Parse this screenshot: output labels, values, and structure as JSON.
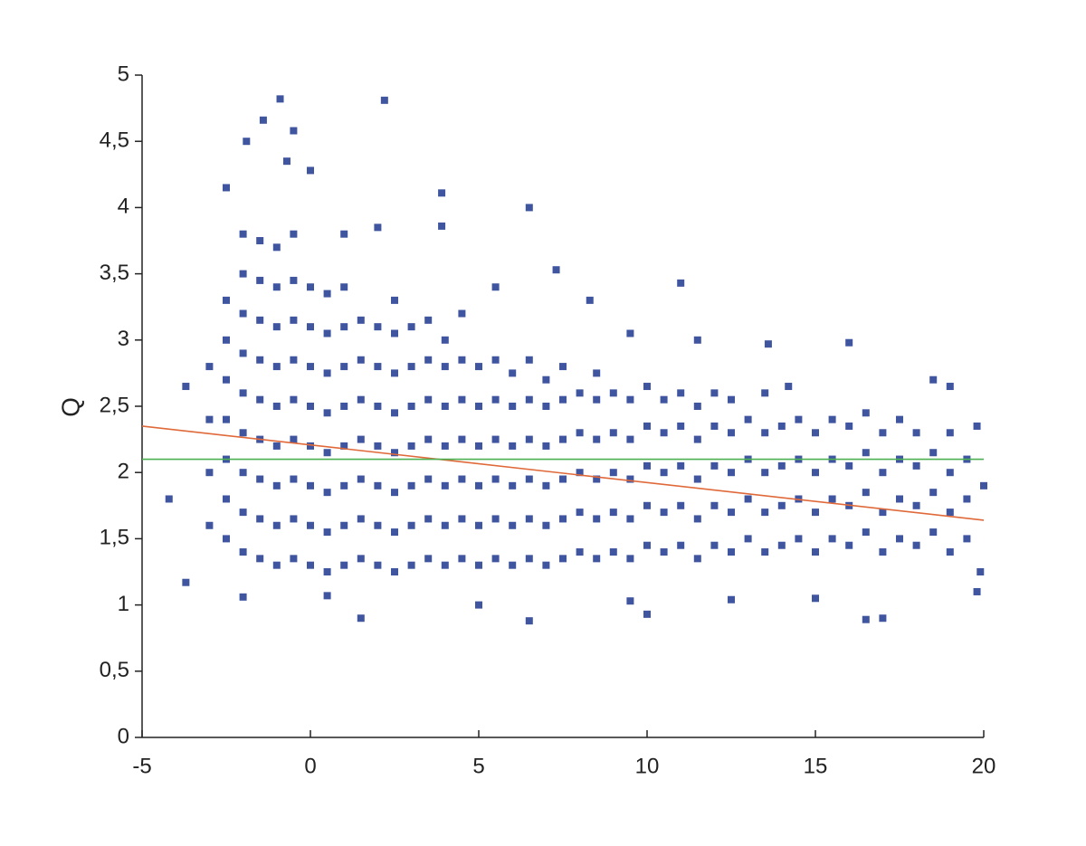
{
  "chart_data": {
    "type": "scatter",
    "ylabel": "Q",
    "xlim": [
      -5,
      20
    ],
    "xticks": [
      -5,
      0,
      5,
      10,
      15,
      20
    ],
    "ylim": [
      0,
      5
    ],
    "yticks": [
      0,
      {
        "value": 0.5,
        "label": "0,5"
      },
      1,
      {
        "value": 1.5,
        "label": "1,5"
      },
      2,
      {
        "value": 2.5,
        "label": "2,5"
      },
      3,
      {
        "value": 3.5,
        "label": "3,5"
      },
      4,
      {
        "value": 4.5,
        "label": "4,5"
      },
      5
    ],
    "grid": false,
    "series": [
      {
        "type": "scatter",
        "color": "#3f55a0",
        "x": [
          -3,
          -3,
          -3,
          -3,
          -2.5,
          -2.5,
          -2.5,
          -2.5,
          -2.5,
          -2.5,
          -2.5,
          -2,
          -2,
          -2,
          -2,
          -2,
          -2,
          -2,
          -2,
          -2,
          -1.5,
          -1.5,
          -1.5,
          -1.5,
          -1.5,
          -1.5,
          -1.5,
          -1.5,
          -1.5,
          -1,
          -1,
          -1,
          -1,
          -1,
          -1,
          -1,
          -1,
          -1,
          -0.5,
          -0.5,
          -0.5,
          -0.5,
          -0.5,
          -0.5,
          -0.5,
          -0.5,
          -0.5,
          0,
          0,
          0,
          0,
          0,
          0,
          0,
          0,
          0.5,
          0.5,
          0.5,
          0.5,
          0.5,
          0.5,
          0.5,
          0.5,
          1,
          1,
          1,
          1,
          1,
          1,
          1,
          1,
          1,
          1.5,
          1.5,
          1.5,
          1.5,
          1.5,
          1.5,
          1.5,
          2,
          2,
          2,
          2,
          2,
          2,
          2,
          2,
          2.5,
          2.5,
          2.5,
          2.5,
          2.5,
          2.5,
          2.5,
          2.5,
          3,
          3,
          3,
          3,
          3,
          3,
          3,
          3.5,
          3.5,
          3.5,
          3.5,
          3.5,
          3.5,
          3.5,
          4,
          4,
          4,
          4,
          4,
          4,
          4,
          4.5,
          4.5,
          4.5,
          4.5,
          4.5,
          4.5,
          4.5,
          5,
          5,
          5,
          5,
          5,
          5,
          5.5,
          5.5,
          5.5,
          5.5,
          5.5,
          5.5,
          5.5,
          6,
          6,
          6,
          6,
          6,
          6,
          6.5,
          6.5,
          6.5,
          6.5,
          6.5,
          6.5,
          7,
          7,
          7,
          7,
          7,
          7,
          7.5,
          7.5,
          7.5,
          7.5,
          7.5,
          7.5,
          8,
          8,
          8,
          8,
          8,
          8.5,
          8.5,
          8.5,
          8.5,
          8.5,
          8.5,
          9,
          9,
          9,
          9,
          9,
          9.5,
          9.5,
          9.5,
          9.5,
          9.5,
          9.5,
          10,
          10,
          10,
          10,
          10,
          10.5,
          10.5,
          10.5,
          10.5,
          10.5,
          11,
          11,
          11,
          11,
          11,
          11.5,
          11.5,
          11.5,
          11.5,
          11.5,
          11.5,
          12,
          12,
          12,
          12,
          12,
          12.5,
          12.5,
          12.5,
          12.5,
          12.5,
          13,
          13,
          13,
          13,
          13.5,
          13.5,
          13.5,
          13.5,
          13.5,
          14,
          14,
          14,
          14,
          14.5,
          14.5,
          14.5,
          14.5,
          15,
          15,
          15,
          15,
          15.5,
          15.5,
          15.5,
          15.5,
          16,
          16,
          16,
          16,
          16.5,
          16.5,
          16.5,
          16.5,
          17,
          17,
          17,
          17,
          17.5,
          17.5,
          17.5,
          17.5,
          18,
          18,
          18,
          18,
          18.5,
          18.5,
          18.5,
          19,
          19,
          19,
          19,
          19.5,
          19.5,
          19.5,
          -0.9,
          2.2,
          -1.4,
          -1.9,
          -0.5,
          -0.7,
          0,
          -2.5,
          3.9,
          6.5,
          3.9,
          7.3,
          11,
          8.3,
          13.6,
          16,
          -3.7,
          -4.2,
          -3.7,
          1.5,
          6.5,
          10,
          16.5,
          17,
          19.8,
          15,
          -2,
          0.5,
          5,
          9.5,
          12.5,
          14.2,
          18.5,
          19,
          19.8,
          20,
          19.9
        ],
        "values": [
          1.6,
          2.0,
          2.4,
          2.8,
          1.5,
          1.8,
          2.1,
          2.4,
          2.7,
          3.0,
          3.3,
          1.4,
          1.7,
          2.0,
          2.3,
          2.6,
          2.9,
          3.2,
          3.5,
          3.8,
          1.35,
          1.65,
          1.95,
          2.25,
          2.55,
          2.85,
          3.15,
          3.45,
          3.75,
          1.3,
          1.6,
          1.9,
          2.2,
          2.5,
          2.8,
          3.1,
          3.4,
          3.7,
          1.35,
          1.65,
          1.95,
          2.25,
          2.55,
          2.85,
          3.15,
          3.45,
          3.8,
          1.3,
          1.6,
          1.9,
          2.2,
          2.5,
          2.8,
          3.1,
          3.4,
          1.25,
          1.55,
          1.85,
          2.15,
          2.45,
          2.75,
          3.05,
          3.35,
          1.3,
          1.6,
          1.9,
          2.2,
          2.5,
          2.8,
          3.1,
          3.4,
          3.8,
          1.35,
          1.65,
          1.95,
          2.25,
          2.55,
          2.85,
          3.15,
          1.3,
          1.6,
          1.9,
          2.2,
          2.5,
          2.8,
          3.1,
          3.85,
          1.25,
          1.55,
          1.85,
          2.15,
          2.45,
          2.75,
          3.05,
          3.3,
          1.3,
          1.6,
          1.9,
          2.2,
          2.5,
          2.8,
          3.1,
          1.35,
          1.65,
          1.95,
          2.25,
          2.55,
          2.85,
          3.15,
          1.3,
          1.6,
          1.9,
          2.2,
          2.5,
          2.8,
          3.0,
          1.35,
          1.65,
          1.95,
          2.25,
          2.55,
          2.85,
          3.2,
          1.3,
          1.6,
          1.9,
          2.2,
          2.5,
          2.8,
          1.35,
          1.65,
          1.95,
          2.25,
          2.55,
          2.85,
          3.4,
          1.3,
          1.6,
          1.9,
          2.2,
          2.5,
          2.75,
          1.35,
          1.65,
          1.95,
          2.25,
          2.55,
          2.85,
          1.3,
          1.6,
          1.9,
          2.2,
          2.5,
          2.7,
          1.35,
          1.65,
          1.95,
          2.25,
          2.55,
          2.8,
          1.4,
          1.7,
          2.0,
          2.3,
          2.6,
          1.35,
          1.65,
          1.95,
          2.25,
          2.55,
          2.75,
          1.4,
          1.7,
          2.0,
          2.3,
          2.6,
          1.35,
          1.65,
          1.95,
          2.25,
          2.55,
          3.05,
          1.45,
          1.75,
          2.05,
          2.35,
          2.65,
          1.4,
          1.7,
          2.0,
          2.3,
          2.55,
          1.45,
          1.75,
          2.05,
          2.35,
          2.6,
          1.35,
          1.65,
          1.95,
          2.25,
          2.5,
          3.0,
          1.45,
          1.75,
          2.05,
          2.35,
          2.6,
          1.4,
          1.7,
          2.0,
          2.3,
          2.55,
          1.5,
          1.8,
          2.1,
          2.4,
          1.4,
          1.7,
          2.0,
          2.3,
          2.6,
          1.45,
          1.75,
          2.05,
          2.35,
          1.5,
          1.8,
          2.1,
          2.4,
          1.4,
          1.7,
          2.0,
          2.3,
          1.5,
          1.8,
          2.1,
          2.4,
          1.45,
          1.75,
          2.05,
          2.35,
          1.55,
          1.85,
          2.15,
          2.45,
          1.4,
          1.7,
          2.0,
          2.3,
          1.5,
          1.8,
          2.1,
          2.4,
          1.45,
          1.75,
          2.05,
          2.3,
          1.55,
          1.85,
          2.15,
          1.4,
          1.7,
          2.0,
          2.3,
          1.5,
          1.8,
          2.1,
          4.82,
          4.81,
          4.66,
          4.5,
          4.58,
          4.35,
          4.28,
          4.15,
          4.11,
          4.0,
          3.86,
          3.53,
          3.43,
          3.3,
          2.97,
          2.98,
          2.65,
          1.8,
          1.17,
          0.9,
          0.88,
          0.93,
          0.89,
          0.9,
          1.1,
          1.05,
          1.06,
          1.07,
          1.0,
          1.03,
          1.04,
          2.65,
          2.7,
          2.65,
          2.35,
          1.9,
          1.25
        ]
      },
      {
        "type": "line",
        "color": "#e0693a",
        "x": [
          -5,
          20
        ],
        "values": [
          2.35,
          1.64
        ]
      },
      {
        "type": "line",
        "color": "#4caf50",
        "x": [
          -5,
          20
        ],
        "values": [
          2.1,
          2.1
        ]
      }
    ]
  }
}
